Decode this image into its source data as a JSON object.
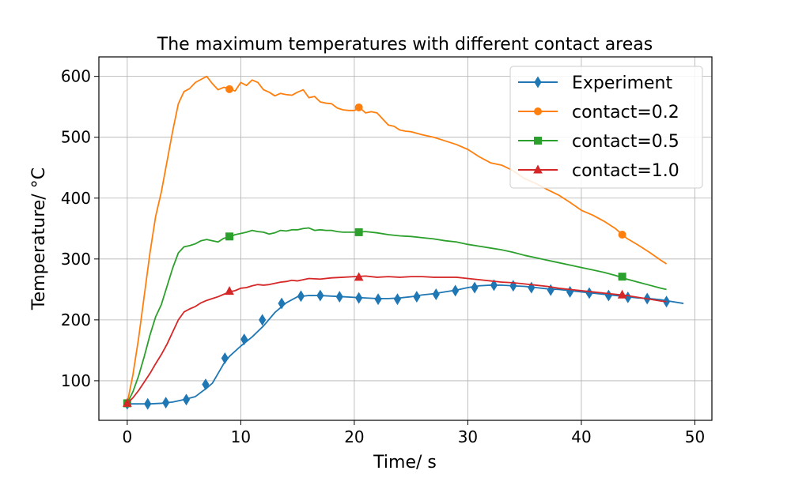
{
  "chart_data": {
    "type": "line",
    "title": "The maximum temperatures with different contact areas",
    "xlabel": "Time/ s",
    "ylabel": "Temperature/ °C",
    "xlim": [
      -2.5,
      51.5
    ],
    "ylim": [
      35,
      632
    ],
    "xticks": [
      0,
      10,
      20,
      30,
      40,
      50
    ],
    "yticks": [
      100,
      200,
      300,
      400,
      500,
      600
    ],
    "grid": true,
    "legend_position": "top-right",
    "series": [
      {
        "name": "Experiment",
        "color": "#1f77b4",
        "marker": "diamond",
        "points": [
          [
            0,
            62
          ],
          [
            1,
            62
          ],
          [
            2,
            62
          ],
          [
            3,
            63
          ],
          [
            4,
            65
          ],
          [
            5,
            69
          ],
          [
            6,
            74
          ],
          [
            7,
            88
          ],
          [
            7.5,
            96
          ],
          [
            8,
            112
          ],
          [
            8.5,
            128
          ],
          [
            9,
            140
          ],
          [
            10,
            157
          ],
          [
            11,
            172
          ],
          [
            12,
            190
          ],
          [
            13,
            212
          ],
          [
            14,
            228
          ],
          [
            15,
            238
          ],
          [
            16,
            240
          ],
          [
            17,
            240
          ],
          [
            18,
            239
          ],
          [
            19,
            238
          ],
          [
            20,
            237
          ],
          [
            21,
            236
          ],
          [
            22,
            235
          ],
          [
            23,
            235
          ],
          [
            24,
            236
          ],
          [
            25,
            238
          ],
          [
            26,
            241
          ],
          [
            27,
            243
          ],
          [
            28,
            246
          ],
          [
            29,
            249
          ],
          [
            30,
            253
          ],
          [
            31,
            256
          ],
          [
            32,
            257
          ],
          [
            33,
            257
          ],
          [
            34,
            256
          ],
          [
            35,
            255
          ],
          [
            36,
            253
          ],
          [
            37,
            251
          ],
          [
            38,
            250
          ],
          [
            39,
            248
          ],
          [
            40,
            246
          ],
          [
            41,
            244
          ],
          [
            42,
            242
          ],
          [
            43,
            240
          ],
          [
            44,
            238
          ],
          [
            45,
            236
          ],
          [
            46,
            235
          ],
          [
            47,
            233
          ],
          [
            48,
            230
          ],
          [
            49,
            227
          ]
        ],
        "markers": [
          [
            0,
            62
          ],
          [
            1.8,
            62
          ],
          [
            3.4,
            64
          ],
          [
            5.2,
            69
          ],
          [
            6.9,
            94
          ],
          [
            8.6,
            137
          ],
          [
            10.3,
            168
          ],
          [
            11.9,
            200
          ],
          [
            13.6,
            227
          ],
          [
            15.3,
            239
          ],
          [
            17,
            240
          ],
          [
            18.7,
            238
          ],
          [
            20.4,
            236
          ],
          [
            22.1,
            234
          ],
          [
            23.8,
            234
          ],
          [
            25.5,
            238
          ],
          [
            27.2,
            242
          ],
          [
            28.9,
            248
          ],
          [
            30.6,
            253
          ],
          [
            32.3,
            257
          ],
          [
            34,
            256
          ],
          [
            35.6,
            253
          ],
          [
            37.3,
            249
          ],
          [
            39,
            246
          ],
          [
            40.7,
            244
          ],
          [
            42.4,
            240
          ],
          [
            44.1,
            237
          ],
          [
            45.8,
            235
          ],
          [
            47.5,
            230
          ]
        ]
      },
      {
        "name": "contact=0.2",
        "color": "#ff7f0e",
        "marker": "circle",
        "points": [
          [
            0,
            63
          ],
          [
            0.5,
            110
          ],
          [
            1,
            170
          ],
          [
            1.5,
            240
          ],
          [
            2,
            310
          ],
          [
            2.5,
            370
          ],
          [
            3,
            410
          ],
          [
            3.5,
            460
          ],
          [
            4,
            510
          ],
          [
            4.5,
            555
          ],
          [
            5,
            575
          ],
          [
            5.5,
            580
          ],
          [
            6,
            590
          ],
          [
            6.5,
            595
          ],
          [
            7,
            600
          ],
          [
            7.5,
            588
          ],
          [
            8,
            578
          ],
          [
            8.5,
            582
          ],
          [
            9,
            580
          ],
          [
            9.5,
            576
          ],
          [
            10,
            590
          ],
          [
            10.5,
            585
          ],
          [
            11,
            594
          ],
          [
            11.5,
            590
          ],
          [
            12,
            578
          ],
          [
            12.5,
            574
          ],
          [
            13,
            568
          ],
          [
            13.5,
            572
          ],
          [
            14,
            570
          ],
          [
            14.5,
            569
          ],
          [
            15,
            574
          ],
          [
            15.5,
            578
          ],
          [
            16,
            565
          ],
          [
            16.5,
            567
          ],
          [
            17,
            558
          ],
          [
            17.5,
            556
          ],
          [
            18,
            555
          ],
          [
            18.5,
            548
          ],
          [
            19,
            545
          ],
          [
            19.5,
            544
          ],
          [
            20,
            544
          ],
          [
            20.5,
            548
          ],
          [
            21,
            540
          ],
          [
            21.5,
            542
          ],
          [
            22,
            540
          ],
          [
            22.5,
            530
          ],
          [
            23,
            520
          ],
          [
            23.5,
            518
          ],
          [
            24,
            512
          ],
          [
            24.5,
            510
          ],
          [
            25,
            509
          ],
          [
            26,
            504
          ],
          [
            27,
            500
          ],
          [
            28,
            494
          ],
          [
            29,
            488
          ],
          [
            30,
            480
          ],
          [
            31,
            468
          ],
          [
            32,
            458
          ],
          [
            33,
            454
          ],
          [
            34,
            445
          ],
          [
            35,
            432
          ],
          [
            36,
            424
          ],
          [
            37,
            414
          ],
          [
            38,
            405
          ],
          [
            39,
            393
          ],
          [
            40,
            380
          ],
          [
            41,
            372
          ],
          [
            42,
            362
          ],
          [
            43,
            350
          ],
          [
            44,
            334
          ],
          [
            45,
            323
          ],
          [
            46,
            311
          ],
          [
            47,
            298
          ],
          [
            47.5,
            292
          ]
        ],
        "markers": [
          [
            0,
            63
          ],
          [
            9,
            579
          ],
          [
            20.4,
            549
          ],
          [
            43.6,
            340
          ]
        ]
      },
      {
        "name": "contact=0.5",
        "color": "#2ca02c",
        "marker": "square",
        "points": [
          [
            0,
            63
          ],
          [
            0.5,
            82
          ],
          [
            1,
            108
          ],
          [
            1.5,
            140
          ],
          [
            2,
            175
          ],
          [
            2.5,
            205
          ],
          [
            3,
            225
          ],
          [
            3.5,
            255
          ],
          [
            4,
            285
          ],
          [
            4.5,
            310
          ],
          [
            5,
            320
          ],
          [
            5.5,
            322
          ],
          [
            6,
            325
          ],
          [
            6.5,
            330
          ],
          [
            7,
            332
          ],
          [
            7.5,
            330
          ],
          [
            8,
            328
          ],
          [
            8.5,
            334
          ],
          [
            9,
            336
          ],
          [
            9.5,
            340
          ],
          [
            10,
            342
          ],
          [
            10.5,
            344
          ],
          [
            11,
            347
          ],
          [
            11.5,
            345
          ],
          [
            12,
            344
          ],
          [
            12.5,
            341
          ],
          [
            13,
            343
          ],
          [
            13.5,
            347
          ],
          [
            14,
            346
          ],
          [
            14.5,
            348
          ],
          [
            15,
            348
          ],
          [
            15.5,
            350
          ],
          [
            16,
            351
          ],
          [
            16.5,
            347
          ],
          [
            17,
            348
          ],
          [
            17.5,
            347
          ],
          [
            18,
            347
          ],
          [
            18.5,
            345
          ],
          [
            19,
            344
          ],
          [
            20,
            344
          ],
          [
            21,
            345
          ],
          [
            22,
            343
          ],
          [
            23,
            340
          ],
          [
            24,
            338
          ],
          [
            25,
            337
          ],
          [
            26,
            335
          ],
          [
            27,
            333
          ],
          [
            28,
            330
          ],
          [
            29,
            328
          ],
          [
            30,
            324
          ],
          [
            31,
            321
          ],
          [
            32,
            318
          ],
          [
            33,
            315
          ],
          [
            34,
            311
          ],
          [
            35,
            306
          ],
          [
            36,
            302
          ],
          [
            37,
            298
          ],
          [
            38,
            294
          ],
          [
            39,
            290
          ],
          [
            40,
            286
          ],
          [
            41,
            282
          ],
          [
            42,
            278
          ],
          [
            43,
            273
          ],
          [
            44,
            267
          ],
          [
            45,
            262
          ],
          [
            46,
            257
          ],
          [
            47,
            252
          ],
          [
            47.5,
            250
          ]
        ],
        "markers": [
          [
            0,
            63
          ],
          [
            9,
            337
          ],
          [
            20.4,
            344
          ],
          [
            43.6,
            271
          ]
        ]
      },
      {
        "name": "contact=1.0",
        "color": "#d62728",
        "marker": "triangle",
        "points": [
          [
            0,
            63
          ],
          [
            0.5,
            72
          ],
          [
            1,
            84
          ],
          [
            1.5,
            98
          ],
          [
            2,
            112
          ],
          [
            2.5,
            128
          ],
          [
            3,
            143
          ],
          [
            3.5,
            160
          ],
          [
            4,
            180
          ],
          [
            4.5,
            200
          ],
          [
            5,
            213
          ],
          [
            5.5,
            218
          ],
          [
            6,
            222
          ],
          [
            6.5,
            228
          ],
          [
            7,
            232
          ],
          [
            7.5,
            235
          ],
          [
            8,
            238
          ],
          [
            8.5,
            242
          ],
          [
            9,
            246
          ],
          [
            9.5,
            248
          ],
          [
            10,
            252
          ],
          [
            10.5,
            253
          ],
          [
            11,
            256
          ],
          [
            11.5,
            258
          ],
          [
            12,
            257
          ],
          [
            12.5,
            258
          ],
          [
            13,
            260
          ],
          [
            13.5,
            262
          ],
          [
            14,
            263
          ],
          [
            14.5,
            265
          ],
          [
            15,
            264
          ],
          [
            15.5,
            266
          ],
          [
            16,
            268
          ],
          [
            17,
            267
          ],
          [
            18,
            269
          ],
          [
            19,
            270
          ],
          [
            20,
            271
          ],
          [
            21,
            272
          ],
          [
            22,
            270
          ],
          [
            23,
            271
          ],
          [
            24,
            270
          ],
          [
            25,
            271
          ],
          [
            26,
            271
          ],
          [
            27,
            270
          ],
          [
            28,
            270
          ],
          [
            29,
            270
          ],
          [
            30,
            268
          ],
          [
            31,
            266
          ],
          [
            32,
            264
          ],
          [
            33,
            262
          ],
          [
            34,
            261
          ],
          [
            35,
            259
          ],
          [
            36,
            257
          ],
          [
            37,
            255
          ],
          [
            38,
            252
          ],
          [
            39,
            250
          ],
          [
            40,
            248
          ],
          [
            41,
            246
          ],
          [
            42,
            244
          ],
          [
            43,
            242
          ],
          [
            44,
            240
          ],
          [
            45,
            237
          ],
          [
            46,
            234
          ],
          [
            47,
            231
          ],
          [
            47.5,
            230
          ]
        ],
        "markers": [
          [
            0,
            63
          ],
          [
            9,
            247
          ],
          [
            20.4,
            270
          ],
          [
            43.6,
            241
          ]
        ]
      }
    ]
  }
}
